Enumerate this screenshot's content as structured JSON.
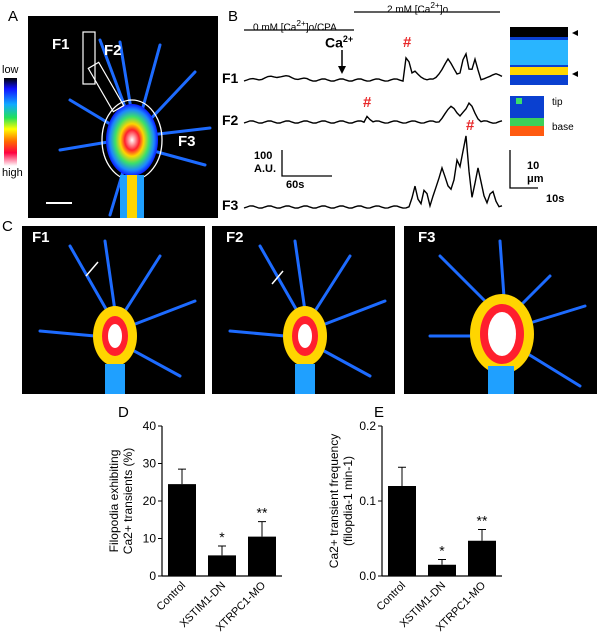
{
  "panels": {
    "A": {
      "letter": "A",
      "labels": {
        "f1": "F1",
        "f2": "F2",
        "f3": "F3"
      },
      "colorbar": {
        "low": "low",
        "high": "high"
      }
    },
    "B": {
      "letter": "B",
      "condition1": "0 mM [Ca",
      "condition1_sup": "2+",
      "condition1_suffix": "]o/CPA",
      "condition2": "2 mM [Ca",
      "condition2_sup": "2+",
      "condition2_suffix": "]o",
      "ca_label": "Ca",
      "ca_sup": "2+",
      "trace_labels": [
        "F1",
        "F2",
        "F3"
      ],
      "event_marker": "#",
      "scalebar_y": "100",
      "scalebar_y_unit": "A.U.",
      "scalebar_x": "60s",
      "kymo_tip": "tip",
      "kymo_base": "base",
      "kymo_scale_y": "10",
      "kymo_scale_y_unit": "μm",
      "kymo_scale_x": "10s"
    },
    "C": {
      "letter": "C",
      "frames": [
        "F1",
        "F2",
        "F3"
      ]
    },
    "D": {
      "letter": "D"
    },
    "E": {
      "letter": "E"
    }
  },
  "colors": {
    "trace": "#000000",
    "marker": "#e8282a",
    "bar": "#000000",
    "image_bg": "#000000"
  },
  "chart_data": [
    {
      "id": "D",
      "type": "bar",
      "categories": [
        "Control",
        "XSTIM1-DN",
        "XTRPC1-MO"
      ],
      "values": [
        24.5,
        5.5,
        10.5
      ],
      "errors": [
        4,
        2.5,
        4
      ],
      "significance": [
        "",
        "*",
        "**"
      ],
      "ylabel_line1": "Filopodia exhibiting",
      "ylabel_line2": "Ca2+ transients (%)",
      "ylim": [
        0,
        40
      ],
      "yticks": [
        "0",
        "10",
        "20",
        "30",
        "40"
      ]
    },
    {
      "id": "E",
      "type": "bar",
      "categories": [
        "Control",
        "XSTIM1-DN",
        "XTRPC1-MO"
      ],
      "values": [
        0.12,
        0.015,
        0.047
      ],
      "errors": [
        0.025,
        0.007,
        0.015
      ],
      "significance": [
        "",
        "*",
        "**"
      ],
      "ylabel_line1": "Ca2+ transient frequency",
      "ylabel_line2": "(filopdia-1 min-1)",
      "ylim": [
        0,
        0.2
      ],
      "yticks": [
        "0.0",
        "0.1",
        "0.2"
      ]
    }
  ]
}
